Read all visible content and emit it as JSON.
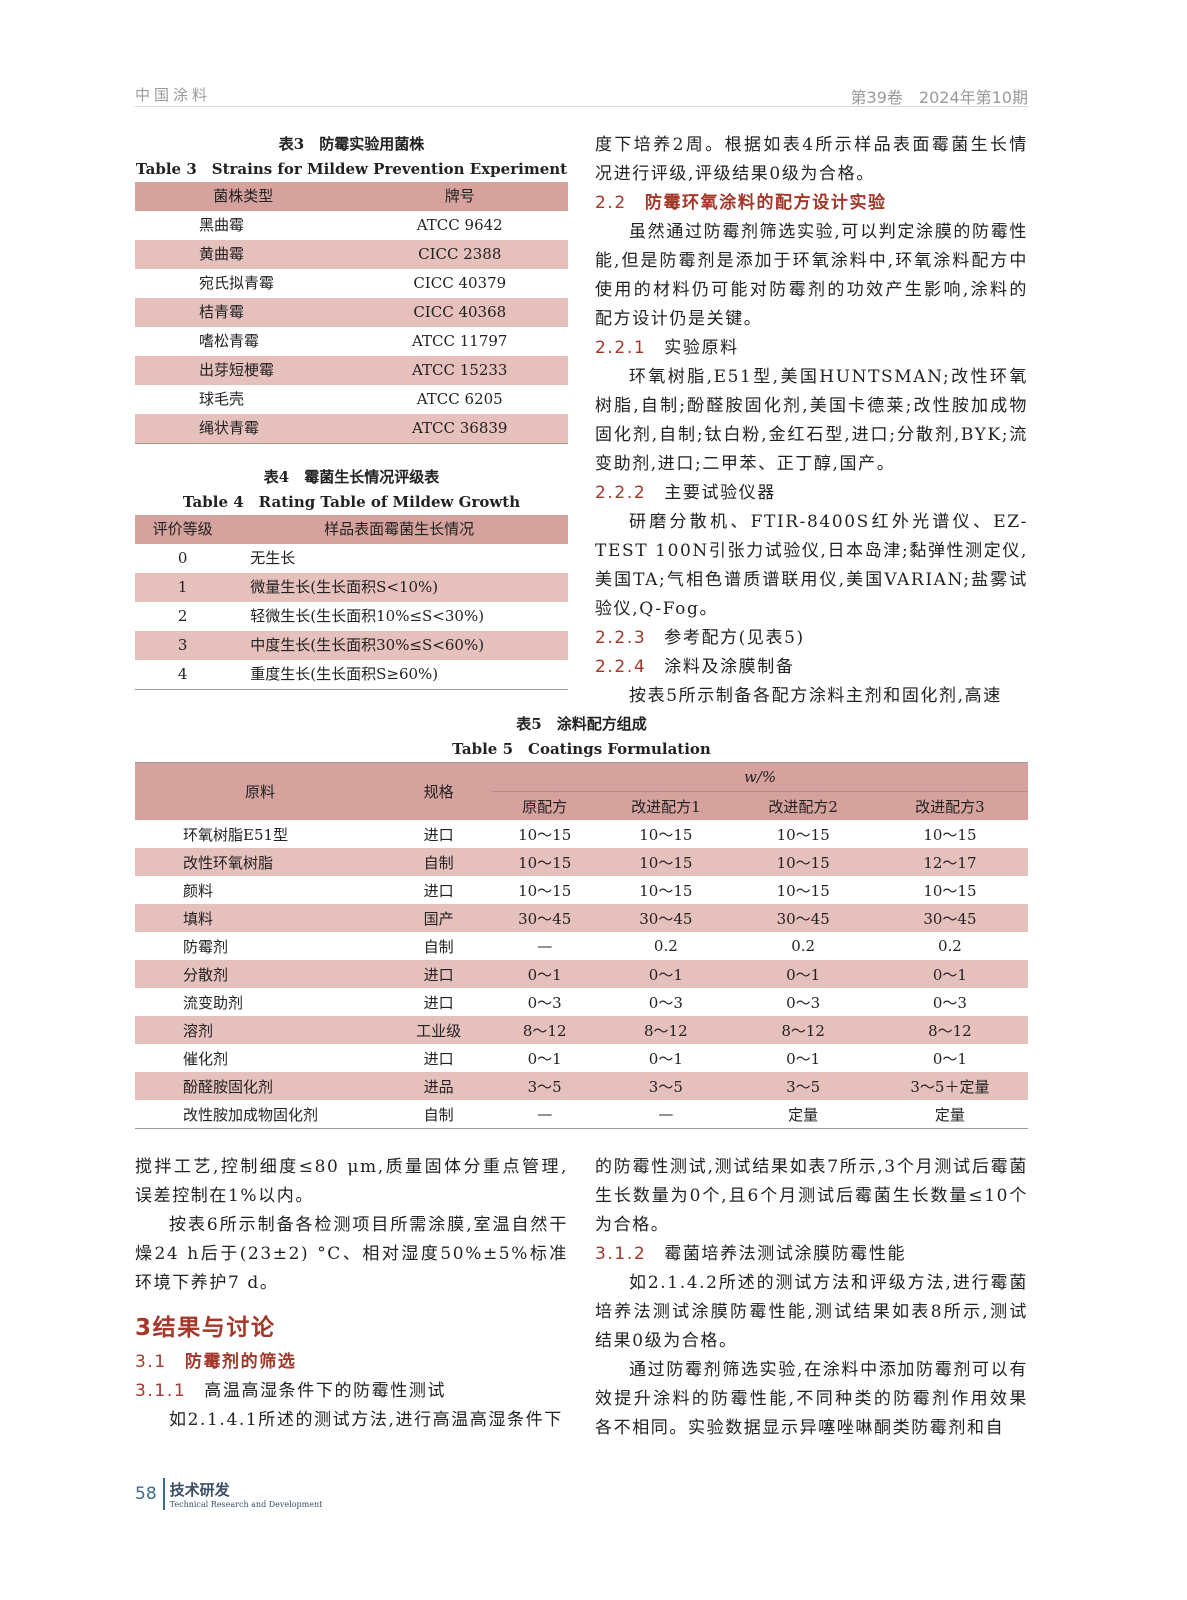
{
  "header": {
    "journal": "中国涂料",
    "issue": "第39卷　2024年第10期"
  },
  "table3": {
    "caption_cn": "表3　防霉实验用菌株",
    "caption_en": "Table 3　Strains for Mildew Prevention Experiment",
    "headers": [
      "菌株类型",
      "牌号"
    ],
    "rows": [
      [
        "黑曲霉",
        "ATCC 9642"
      ],
      [
        "黄曲霉",
        "CICC 2388"
      ],
      [
        "宛氏拟青霉",
        "CICC 40379"
      ],
      [
        "桔青霉",
        "CICC 40368"
      ],
      [
        "嗜松青霉",
        "ATCC 11797"
      ],
      [
        "出芽短梗霉",
        "ATCC 15233"
      ],
      [
        "球毛壳",
        "ATCC 6205"
      ],
      [
        "绳状青霉",
        "ATCC 36839"
      ]
    ]
  },
  "table4": {
    "caption_cn": "表4　霉菌生长情况评级表",
    "caption_en": "Table 4　Rating Table of Mildew Growth",
    "headers": [
      "评价等级",
      "样品表面霉菌生长情况"
    ],
    "rows": [
      [
        "0",
        "无生长"
      ],
      [
        "1",
        "微量生长(生长面积S<10%)"
      ],
      [
        "2",
        "轻微生长(生长面积10%≤S<30%)"
      ],
      [
        "3",
        "中度生长(生长面积30%≤S<60%)"
      ],
      [
        "4",
        "重度生长(生长面积S≥60%)"
      ]
    ]
  },
  "right_top": [
    {
      "type": "p",
      "text": "度下培养2周。根据如表4所示样品表面霉菌生长情况进行评级,评级结果0级为合格。"
    },
    {
      "type": "h2",
      "num": "2.2",
      "text": "防霉环氧涂料的配方设计实验"
    },
    {
      "type": "pi",
      "text": "虽然通过防霉剂筛选实验,可以判定涂膜的防霉性能,但是防霉剂是添加于环氧涂料中,环氧涂料配方中使用的材料仍可能对防霉剂的功效产生影响,涂料的配方设计仍是关键。"
    },
    {
      "type": "h3",
      "num": "2.2.1",
      "text": "实验原料"
    },
    {
      "type": "pi",
      "text": "环氧树脂,E51型,美国HUNTSMAN;改性环氧树脂,自制;酚醛胺固化剂,美国卡德莱;改性胺加成物固化剂,自制;钛白粉,金红石型,进口;分散剂,BYK;流变助剂,进口;二甲苯、正丁醇,国产。"
    },
    {
      "type": "h3",
      "num": "2.2.2",
      "text": "主要试验仪器"
    },
    {
      "type": "pi",
      "text": "研磨分散机、FTIR-8400S红外光谱仪、EZ-TEST 100N引张力试验仪,日本岛津;黏弹性测定仪,美国TA;气相色谱质谱联用仪,美国VARIAN;盐雾试验仪,Q-Fog。"
    },
    {
      "type": "h3",
      "num": "2.2.3",
      "text": "参考配方(见表5)"
    },
    {
      "type": "h3",
      "num": "2.2.4",
      "text": "涂料及涂膜制备"
    },
    {
      "type": "pi",
      "text": "按表5所示制备各配方涂料主剂和固化剂,高速"
    }
  ],
  "table5": {
    "caption_cn": "表5　涂料配方组成",
    "caption_en": "Table 5　Coatings Formulation",
    "headers": {
      "material": "原料",
      "spec": "规格",
      "unit": "w/%",
      "formulas": [
        "原配方",
        "改进配方1",
        "改进配方2",
        "改进配方3"
      ]
    },
    "rows": [
      [
        "环氧树脂E51型",
        "进口",
        "10～15",
        "10～15",
        "10～15",
        "10～15"
      ],
      [
        "改性环氧树脂",
        "自制",
        "10～15",
        "10～15",
        "10～15",
        "12～17"
      ],
      [
        "颜料",
        "进口",
        "10～15",
        "10～15",
        "10～15",
        "10～15"
      ],
      [
        "填料",
        "国产",
        "30～45",
        "30～45",
        "30～45",
        "30～45"
      ],
      [
        "防霉剂",
        "自制",
        "—",
        "0.2",
        "0.2",
        "0.2"
      ],
      [
        "分散剂",
        "进口",
        "0～1",
        "0～1",
        "0～1",
        "0～1"
      ],
      [
        "流变助剂",
        "进口",
        "0～3",
        "0～3",
        "0～3",
        "0～3"
      ],
      [
        "溶剂",
        "工业级",
        "8～12",
        "8～12",
        "8～12",
        "8～12"
      ],
      [
        "催化剂",
        "进口",
        "0～1",
        "0～1",
        "0～1",
        "0～1"
      ],
      [
        "酚醛胺固化剂",
        "进品",
        "3～5",
        "3～5",
        "3～5",
        "3～5＋定量"
      ],
      [
        "改性胺加成物固化剂",
        "自制",
        "—",
        "—",
        "定量",
        "定量"
      ]
    ]
  },
  "left_bottom": [
    {
      "type": "p",
      "text": "搅拌工艺,控制细度≤80 μm,质量固体分重点管理,误差控制在1%以内。"
    },
    {
      "type": "pi",
      "text": "按表6所示制备各检测项目所需涂膜,室温自然干燥24 h后于(23±2) °C、相对湿度50%±5%标准环境下养护7 d。"
    },
    {
      "type": "h1",
      "num": "3",
      "text": "结果与讨论"
    },
    {
      "type": "h2",
      "num": "3.1",
      "text": "防霉剂的筛选"
    },
    {
      "type": "h3",
      "num": "3.1.1",
      "text": "高温高湿条件下的防霉性测试"
    },
    {
      "type": "pi",
      "text": "如2.1.4.1所述的测试方法,进行高温高湿条件下"
    }
  ],
  "right_bottom": [
    {
      "type": "p",
      "text": "的防霉性测试,测试结果如表7所示,3个月测试后霉菌生长数量为0个,且6个月测试后霉菌生长数量≤10个为合格。"
    },
    {
      "type": "h3",
      "num": "3.1.2",
      "text": "霉菌培养法测试涂膜防霉性能"
    },
    {
      "type": "pi",
      "text": "如2.1.4.2所述的测试方法和评级方法,进行霉菌培养法测试涂膜防霉性能,测试结果如表8所示,测试结果0级为合格。"
    },
    {
      "type": "pi",
      "text": "通过防霉剂筛选实验,在涂料中添加防霉剂可以有效提升涂料的防霉性能,不同种类的防霉剂作用效果各不相同。实验数据显示异噻唑啉酮类防霉剂和自"
    }
  ],
  "footer": {
    "page": "58",
    "section_cn": "技术研发",
    "section_en": "Technical Research and Development"
  },
  "colors": {
    "accent": "#a3372a",
    "table_header": "#d5a29d",
    "table_stripe": "#e6c0bc"
  }
}
